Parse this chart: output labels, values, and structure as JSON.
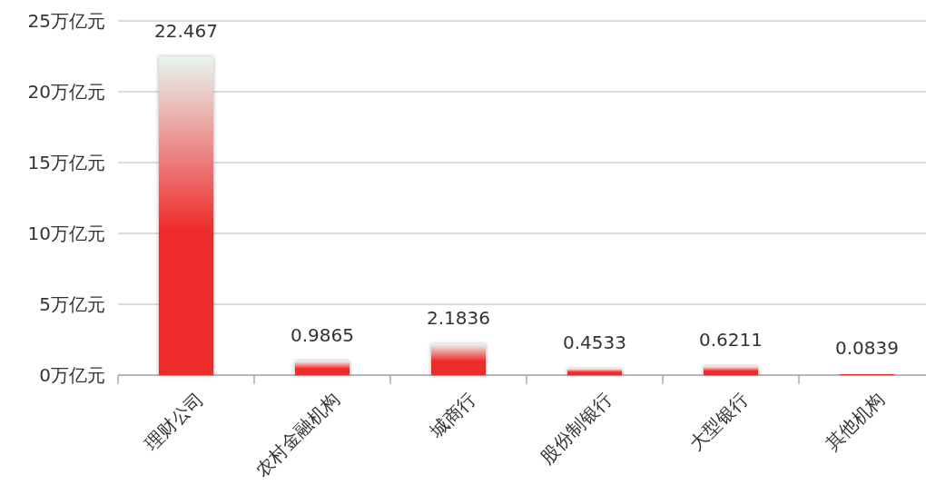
{
  "chart_data": {
    "type": "bar",
    "categories": [
      "理财公司",
      "农村金融机构",
      "城商行",
      "股份制银行",
      "大型银行",
      "其他机构"
    ],
    "values": [
      22.467,
      0.9865,
      2.1836,
      0.4533,
      0.6211,
      0.0839
    ],
    "color": "#ee2a2a",
    "ylim": [
      0,
      25
    ],
    "yticks": [
      {
        "value": 0,
        "label": "0万亿元"
      },
      {
        "value": 5,
        "label": "5万亿元"
      },
      {
        "value": 10,
        "label": "10万亿元"
      },
      {
        "value": 15,
        "label": "15万亿元"
      },
      {
        "value": 20,
        "label": "20万亿元"
      },
      {
        "value": 25,
        "label": "25万亿元"
      }
    ],
    "grid": "y",
    "data_labels": true
  }
}
